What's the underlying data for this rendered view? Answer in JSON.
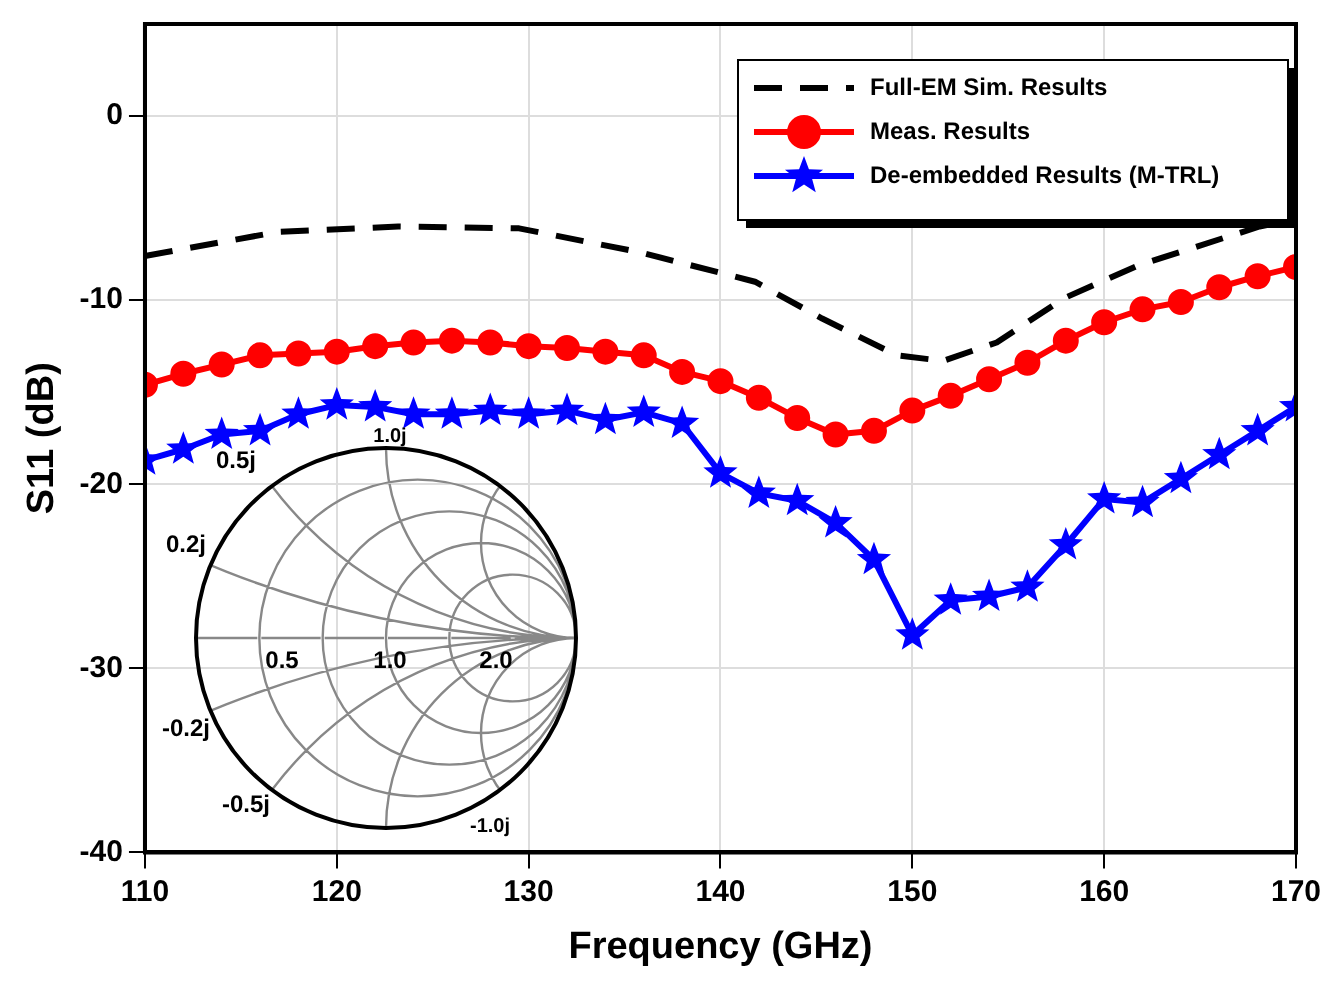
{
  "chart_data": {
    "type": "line",
    "xlabel": "Frequency (GHz)",
    "ylabel": "S11 (dB)",
    "xlim": [
      110,
      170
    ],
    "xticks": [
      110,
      120,
      130,
      140,
      150,
      160,
      170
    ],
    "ylim": [
      -40,
      5
    ],
    "yticks": [
      -40,
      -30,
      -20,
      -10,
      0
    ],
    "grid": true,
    "legend": "top right",
    "series": [
      {
        "name": "Full-EM Sim. Results",
        "color": "#000000",
        "line_style": "dashed",
        "marker": "none",
        "x": [
          110,
          116.9,
          123.2,
          129.5,
          135.8,
          141.8,
          145.3,
          149.2,
          151.6,
          154.4,
          157.9,
          161.8,
          168.1,
          170
        ],
        "values": [
          -7.6,
          -6.3,
          -6.0,
          -6.1,
          -7.4,
          -9.0,
          -11.0,
          -13.0,
          -13.3,
          -12.3,
          -9.9,
          -8.1,
          -6.0,
          -5.6
        ]
      },
      {
        "name": "Meas. Results",
        "color": "#ff0000",
        "line_style": "solid",
        "marker": "circle",
        "x": [
          110,
          112,
          114,
          116,
          118,
          120,
          122,
          124,
          126,
          128,
          130,
          132,
          134,
          136,
          138,
          140,
          142,
          144,
          146,
          148,
          150,
          152,
          154,
          156,
          158,
          160,
          162,
          164,
          166,
          168,
          170
        ],
        "values": [
          -14.6,
          -14.0,
          -13.5,
          -13.0,
          -12.9,
          -12.8,
          -12.5,
          -12.3,
          -12.2,
          -12.3,
          -12.5,
          -12.6,
          -12.8,
          -13.0,
          -13.9,
          -14.4,
          -15.3,
          -16.4,
          -17.3,
          -17.1,
          -16.0,
          -15.2,
          -14.3,
          -13.4,
          -12.2,
          -11.2,
          -10.5,
          -10.1,
          -9.3,
          -8.7,
          -8.2
        ]
      },
      {
        "name": "De-embedded Results (M-TRL)",
        "color": "#0000ff",
        "line_style": "solid",
        "marker": "star",
        "x": [
          110,
          112,
          114,
          116,
          118,
          120,
          122,
          124,
          126,
          128,
          130,
          132,
          134,
          136,
          138,
          140,
          142,
          144,
          146,
          148,
          150,
          152,
          154,
          156,
          158,
          160,
          162,
          164,
          166,
          168,
          170
        ],
        "values": [
          -18.7,
          -18.1,
          -17.3,
          -17.1,
          -16.2,
          -15.7,
          -15.8,
          -16.2,
          -16.2,
          -16.0,
          -16.2,
          -16.0,
          -16.5,
          -16.1,
          -16.7,
          -19.4,
          -20.5,
          -20.9,
          -22.1,
          -24.1,
          -28.2,
          -26.3,
          -26.1,
          -25.6,
          -23.3,
          -20.8,
          -21.0,
          -19.7,
          -18.4,
          -17.1,
          -15.8
        ]
      }
    ],
    "annotations": [
      "1.0j",
      "0.5j",
      "0.2j",
      "0.5",
      "1.0",
      "2.0",
      "-0.2j",
      "-0.5j",
      "-1.0j"
    ]
  }
}
